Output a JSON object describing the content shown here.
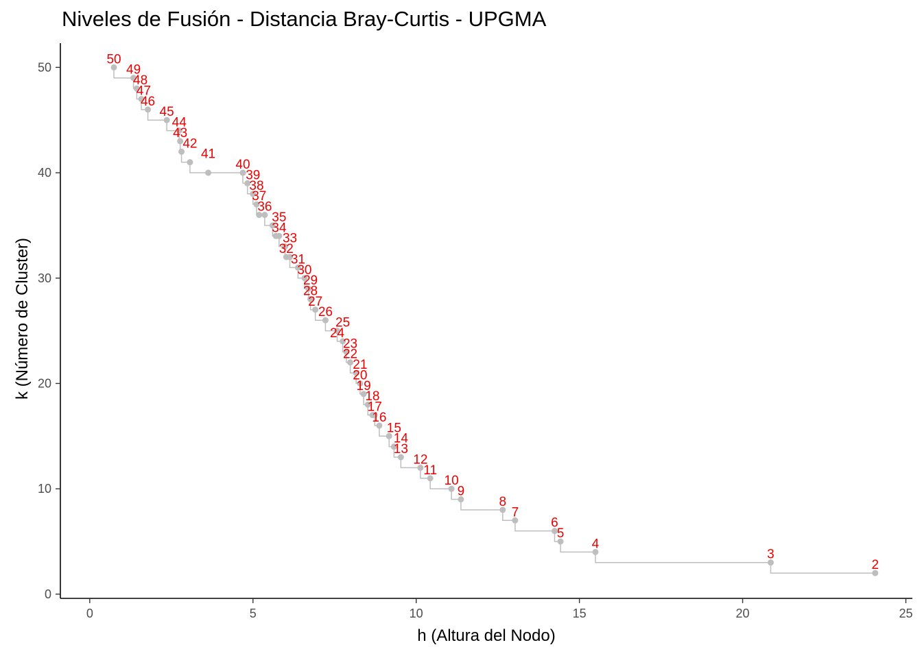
{
  "chart_data": {
    "type": "scatter",
    "title": "Niveles de Fusión - Distancia Bray-Curtis - UPGMA",
    "xlabel": "h (Altura del Nodo)",
    "ylabel": "k (Número de Cluster)",
    "xlim": [
      -0.9,
      25.2
    ],
    "ylim": [
      -0.4,
      52.3
    ],
    "x_ticks": [
      0,
      5,
      10,
      15,
      20,
      25
    ],
    "y_ticks": [
      0,
      10,
      20,
      30,
      40,
      50
    ],
    "grid": false,
    "step_line": true,
    "point_color": "#bebebe",
    "label_color": "#ee0000",
    "points": [
      {
        "h": 0.74,
        "k": 50
      },
      {
        "h": 1.34,
        "k": 49
      },
      {
        "h": 1.44,
        "k": 48
      },
      {
        "h": 1.58,
        "k": 47
      },
      {
        "h": 1.78,
        "k": 46
      },
      {
        "h": 2.36,
        "k": 45
      },
      {
        "h": 2.74,
        "k": 44
      },
      {
        "h": 2.77,
        "k": 43
      },
      {
        "h": 2.81,
        "k": 42
      },
      {
        "h": 3.07,
        "k": 41
      },
      {
        "h": 3.63,
        "k": 40
      },
      {
        "h": 4.69,
        "k": 40
      },
      {
        "h": 4.83,
        "k": 39
      },
      {
        "h": 5.0,
        "k": 38
      },
      {
        "h": 5.11,
        "k": 37
      },
      {
        "h": 5.19,
        "k": 36
      },
      {
        "h": 5.36,
        "k": 36
      },
      {
        "h": 5.6,
        "k": 35
      },
      {
        "h": 5.7,
        "k": 34
      },
      {
        "h": 5.8,
        "k": 34
      },
      {
        "h": 5.98,
        "k": 33
      },
      {
        "h": 6.02,
        "k": 32
      },
      {
        "h": 6.13,
        "k": 32
      },
      {
        "h": 6.38,
        "k": 31
      },
      {
        "h": 6.58,
        "k": 30
      },
      {
        "h": 6.7,
        "k": 29
      },
      {
        "h": 6.76,
        "k": 28
      },
      {
        "h": 6.91,
        "k": 27
      },
      {
        "h": 7.22,
        "k": 26
      },
      {
        "h": 7.58,
        "k": 25
      },
      {
        "h": 7.75,
        "k": 24
      },
      {
        "h": 7.86,
        "k": 23
      },
      {
        "h": 7.98,
        "k": 22
      },
      {
        "h": 8.16,
        "k": 21
      },
      {
        "h": 8.28,
        "k": 20
      },
      {
        "h": 8.39,
        "k": 19
      },
      {
        "h": 8.52,
        "k": 18
      },
      {
        "h": 8.66,
        "k": 17
      },
      {
        "h": 8.73,
        "k": 17
      },
      {
        "h": 8.87,
        "k": 16
      },
      {
        "h": 9.17,
        "k": 15
      },
      {
        "h": 9.32,
        "k": 14
      },
      {
        "h": 9.53,
        "k": 13
      },
      {
        "h": 10.13,
        "k": 12
      },
      {
        "h": 10.43,
        "k": 11
      },
      {
        "h": 11.08,
        "k": 10
      },
      {
        "h": 11.37,
        "k": 9
      },
      {
        "h": 12.65,
        "k": 8
      },
      {
        "h": 13.03,
        "k": 7
      },
      {
        "h": 14.24,
        "k": 6
      },
      {
        "h": 14.42,
        "k": 5
      },
      {
        "h": 15.49,
        "k": 4
      },
      {
        "h": 20.86,
        "k": 3
      },
      {
        "h": 24.06,
        "k": 2
      }
    ],
    "labels": [
      {
        "text": "50",
        "h": 0.74,
        "k": 50
      },
      {
        "text": "49",
        "h": 1.34,
        "k": 49
      },
      {
        "text": "48",
        "h": 1.55,
        "k": 48
      },
      {
        "text": "47",
        "h": 1.65,
        "k": 47
      },
      {
        "text": "46",
        "h": 1.78,
        "k": 46
      },
      {
        "text": "45",
        "h": 2.36,
        "k": 45
      },
      {
        "text": "44",
        "h": 2.74,
        "k": 44
      },
      {
        "text": "43",
        "h": 2.77,
        "k": 43
      },
      {
        "text": "42",
        "h": 3.07,
        "k": 42
      },
      {
        "text": "41",
        "h": 3.63,
        "k": 41
      },
      {
        "text": "40",
        "h": 4.69,
        "k": 40
      },
      {
        "text": "39",
        "h": 5.0,
        "k": 39
      },
      {
        "text": "38",
        "h": 5.11,
        "k": 38
      },
      {
        "text": "37",
        "h": 5.19,
        "k": 37
      },
      {
        "text": "36",
        "h": 5.36,
        "k": 36
      },
      {
        "text": "35",
        "h": 5.8,
        "k": 35
      },
      {
        "text": "34",
        "h": 5.8,
        "k": 34
      },
      {
        "text": "33",
        "h": 6.13,
        "k": 33
      },
      {
        "text": "32",
        "h": 6.02,
        "k": 32
      },
      {
        "text": "31",
        "h": 6.38,
        "k": 31
      },
      {
        "text": "30",
        "h": 6.58,
        "k": 30
      },
      {
        "text": "29",
        "h": 6.76,
        "k": 29
      },
      {
        "text": "28",
        "h": 6.76,
        "k": 28
      },
      {
        "text": "27",
        "h": 6.91,
        "k": 27
      },
      {
        "text": "26",
        "h": 7.22,
        "k": 26
      },
      {
        "text": "25",
        "h": 7.75,
        "k": 25
      },
      {
        "text": "24",
        "h": 7.58,
        "k": 24
      },
      {
        "text": "23",
        "h": 7.98,
        "k": 23
      },
      {
        "text": "22",
        "h": 7.98,
        "k": 22
      },
      {
        "text": "21",
        "h": 8.28,
        "k": 21
      },
      {
        "text": "20",
        "h": 8.28,
        "k": 20
      },
      {
        "text": "19",
        "h": 8.39,
        "k": 19
      },
      {
        "text": "18",
        "h": 8.66,
        "k": 18
      },
      {
        "text": "17",
        "h": 8.73,
        "k": 17
      },
      {
        "text": "16",
        "h": 8.87,
        "k": 16
      },
      {
        "text": "15",
        "h": 9.32,
        "k": 15
      },
      {
        "text": "14",
        "h": 9.53,
        "k": 14
      },
      {
        "text": "13",
        "h": 9.53,
        "k": 13
      },
      {
        "text": "12",
        "h": 10.13,
        "k": 12
      },
      {
        "text": "11",
        "h": 10.43,
        "k": 11
      },
      {
        "text": "10",
        "h": 11.08,
        "k": 10
      },
      {
        "text": "9",
        "h": 11.37,
        "k": 9
      },
      {
        "text": "8",
        "h": 12.65,
        "k": 8
      },
      {
        "text": "7",
        "h": 13.03,
        "k": 7
      },
      {
        "text": "6",
        "h": 14.24,
        "k": 6
      },
      {
        "text": "5",
        "h": 14.42,
        "k": 5
      },
      {
        "text": "4",
        "h": 15.49,
        "k": 4
      },
      {
        "text": "3",
        "h": 20.86,
        "k": 3
      },
      {
        "text": "2",
        "h": 24.06,
        "k": 2
      }
    ]
  }
}
